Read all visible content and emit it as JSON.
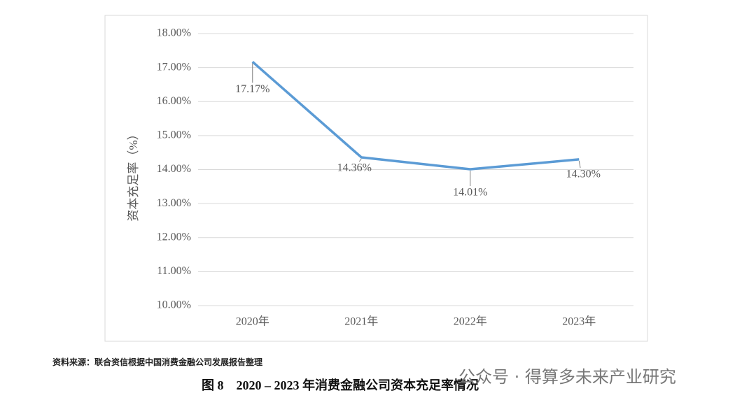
{
  "chart_data": {
    "type": "line",
    "y_label": "资本充足率（%）",
    "categories": [
      "2020年",
      "2021年",
      "2022年",
      "2023年"
    ],
    "series": [
      {
        "name": "资本充足率",
        "color": "#5b9bd5",
        "values": [
          17.17,
          14.36,
          14.01,
          14.3
        ],
        "value_labels": [
          "17.17%",
          "14.36%",
          "14.01%",
          "14.30%"
        ]
      }
    ],
    "ylim": [
      10,
      18
    ],
    "yticks": [
      {
        "value": 10,
        "label": "10.00%"
      },
      {
        "value": 11,
        "label": "11.00%"
      },
      {
        "value": 12,
        "label": "12.00%"
      },
      {
        "value": 13,
        "label": "13.00%"
      },
      {
        "value": 14,
        "label": "14.00%"
      },
      {
        "value": 15,
        "label": "15.00%"
      },
      {
        "value": 16,
        "label": "16.00%"
      },
      {
        "value": 17,
        "label": "17.00%"
      },
      {
        "value": 18,
        "label": "18.00%"
      }
    ],
    "grid": true,
    "legend": false
  },
  "source": "资料来源：联合资信根据中国消费金融公司发展报告整理",
  "caption": "图 8　2020 – 2023 年消费金融公司资本充足率情况",
  "watermark": "公众号 · 得算多未来产业研究"
}
